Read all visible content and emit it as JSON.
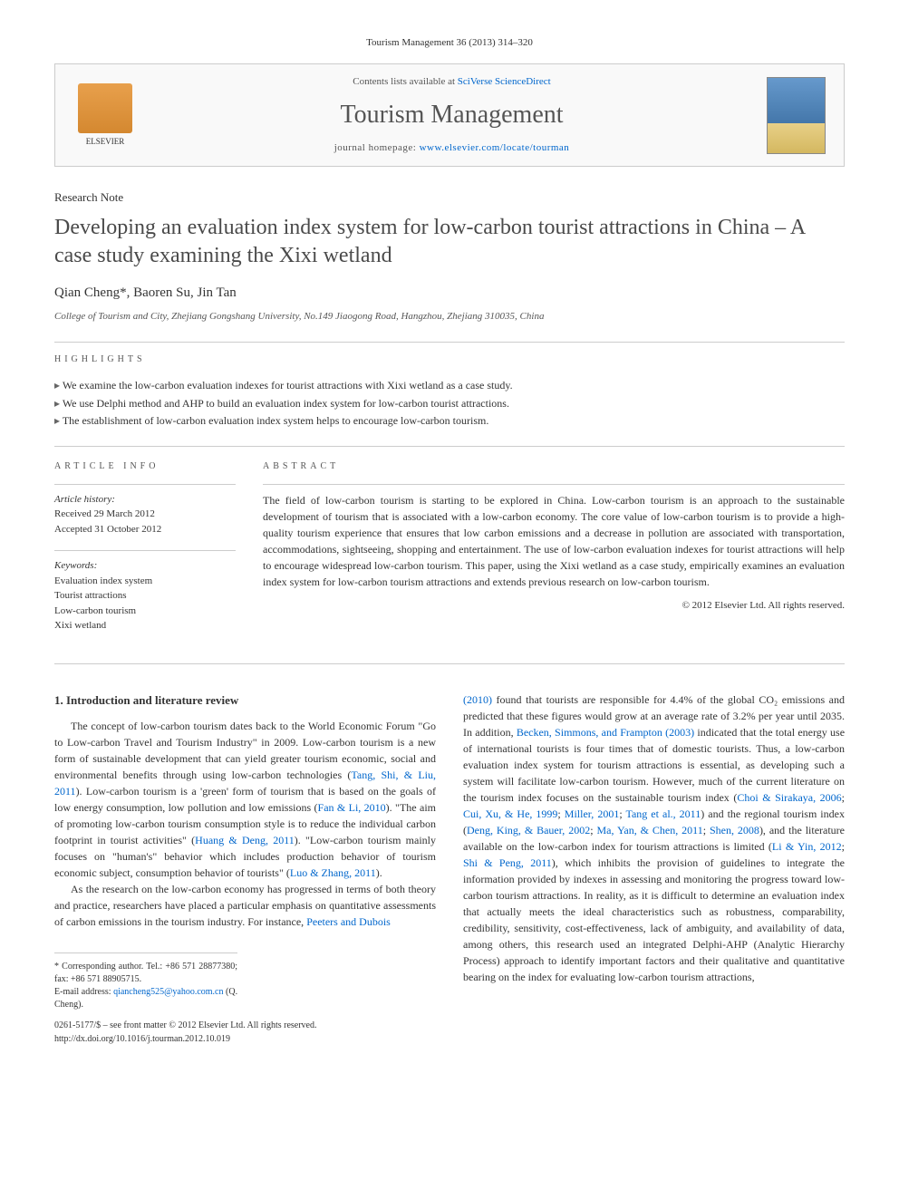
{
  "journal_ref": "Tourism Management 36 (2013) 314–320",
  "header": {
    "publisher": "ELSEVIER",
    "contents_prefix": "Contents lists available at ",
    "contents_link": "SciVerse ScienceDirect",
    "journal_name": "Tourism Management",
    "homepage_prefix": "journal homepage: ",
    "homepage_url": "www.elsevier.com/locate/tourman",
    "cover_label": "Tourism Management"
  },
  "article_type": "Research Note",
  "title": "Developing an evaluation index system for low-carbon tourist attractions in China – A case study examining the Xixi wetland",
  "authors": "Qian Cheng*, Baoren Su, Jin Tan",
  "affiliation": "College of Tourism and City, Zhejiang Gongshang University, No.149 Jiaogong Road, Hangzhou, Zhejiang 310035, China",
  "highlights_label": "HIGHLIGHTS",
  "highlights": [
    "We examine the low-carbon evaluation indexes for tourist attractions with Xixi wetland as a case study.",
    "We use Delphi method and AHP to build an evaluation index system for low-carbon tourist attractions.",
    "The establishment of low-carbon evaluation index system helps to encourage low-carbon tourism."
  ],
  "article_info_label": "ARTICLE INFO",
  "abstract_label": "ABSTRACT",
  "history": {
    "label": "Article history:",
    "received": "Received 29 March 2012",
    "accepted": "Accepted 31 October 2012"
  },
  "keywords": {
    "label": "Keywords:",
    "items": [
      "Evaluation index system",
      "Tourist attractions",
      "Low-carbon tourism",
      "Xixi wetland"
    ]
  },
  "abstract": "The field of low-carbon tourism is starting to be explored in China. Low-carbon tourism is an approach to the sustainable development of tourism that is associated with a low-carbon economy. The core value of low-carbon tourism is to provide a high-quality tourism experience that ensures that low carbon emissions and a decrease in pollution are associated with transportation, accommodations, sightseeing, shopping and entertainment. The use of low-carbon evaluation indexes for tourist attractions will help to encourage widespread low-carbon tourism. This paper, using the Xixi wetland as a case study, empirically examines an evaluation index system for low-carbon tourism attractions and extends previous research on low-carbon tourism.",
  "copyright": "© 2012 Elsevier Ltd. All rights reserved.",
  "section1": {
    "heading": "1. Introduction and literature review",
    "para1_a": "The concept of low-carbon tourism dates back to the World Economic Forum \"Go to Low-carbon Travel and Tourism Industry\" in 2009. Low-carbon tourism is a new form of sustainable development that can yield greater tourism economic, social and environmental benefits through using low-carbon technologies (",
    "cite1": "Tang, Shi, & Liu, 2011",
    "para1_b": "). Low-carbon tourism is a 'green' form of tourism that is based on the goals of low energy consumption, low pollution and low emissions (",
    "cite2": "Fan & Li, 2010",
    "para1_c": "). \"The aim of promoting low-carbon tourism consumption style is to reduce the individual carbon footprint in tourist activities\" (",
    "cite3": "Huang & Deng, 2011",
    "para1_d": "). \"Low-carbon tourism mainly focuses on \"human's\" behavior which includes production behavior of tourism economic subject, consumption behavior of tourists\" (",
    "cite4": "Luo & Zhang, 2011",
    "para1_e": ").",
    "para2_a": "As the research on the low-carbon economy has progressed in terms of both theory and practice, researchers have placed a particular emphasis on quantitative assessments of carbon emissions in the tourism industry. For instance, ",
    "cite5": "Peeters and Dubois",
    "col2_a": "(2010)",
    "col2_b": " found that tourists are responsible for 4.4% of the global CO₂ emissions and predicted that these figures would grow at an average rate of 3.2% per year until 2035. In addition, ",
    "cite6": "Becken, Simmons, and Frampton (2003)",
    "col2_c": " indicated that the total energy use of international tourists is four times that of domestic tourists. Thus, a low-carbon evaluation index system for tourism attractions is essential, as developing such a system will facilitate low-carbon tourism. However, much of the current literature on the tourism index focuses on the sustainable tourism index (",
    "cite7": "Choi & Sirakaya, 2006",
    "cite8": "Cui, Xu, & He, 1999",
    "cite9": "Miller, 2001",
    "cite10": "Tang et al., 2011",
    "col2_d": ") and the regional tourism index (",
    "cite11": "Deng, King, & Bauer, 2002",
    "cite12": "Ma, Yan, & Chen, 2011",
    "cite13": "Shen, 2008",
    "col2_e": "), and the literature available on the low-carbon index for tourism attractions is limited (",
    "cite14": "Li & Yin, 2012",
    "cite15": "Shi & Peng, 2011",
    "col2_f": "), which inhibits the provision of guidelines to integrate the information provided by indexes in assessing and monitoring the progress toward low-carbon tourism attractions. In reality, as it is difficult to determine an evaluation index that actually meets the ideal characteristics such as robustness, comparability, credibility, sensitivity, cost-effectiveness, lack of ambiguity, and availability of data, among others, this research used an integrated Delphi-AHP (Analytic Hierarchy Process) approach to identify important factors and their qualitative and quantitative bearing on the index for evaluating low-carbon tourism attractions,"
  },
  "footer": {
    "corresponding": "* Corresponding author. Tel.: +86 571 28877380; fax: +86 571 88905715.",
    "email_label": "E-mail address: ",
    "email": "qiancheng525@yahoo.com.cn",
    "email_suffix": " (Q. Cheng).",
    "issn": "0261-5177/$ – see front matter © 2012 Elsevier Ltd. All rights reserved.",
    "doi": "http://dx.doi.org/10.1016/j.tourman.2012.10.019"
  },
  "colors": {
    "link": "#0066cc",
    "text": "#333333",
    "heading": "#4a4a4a",
    "border": "#cccccc"
  }
}
